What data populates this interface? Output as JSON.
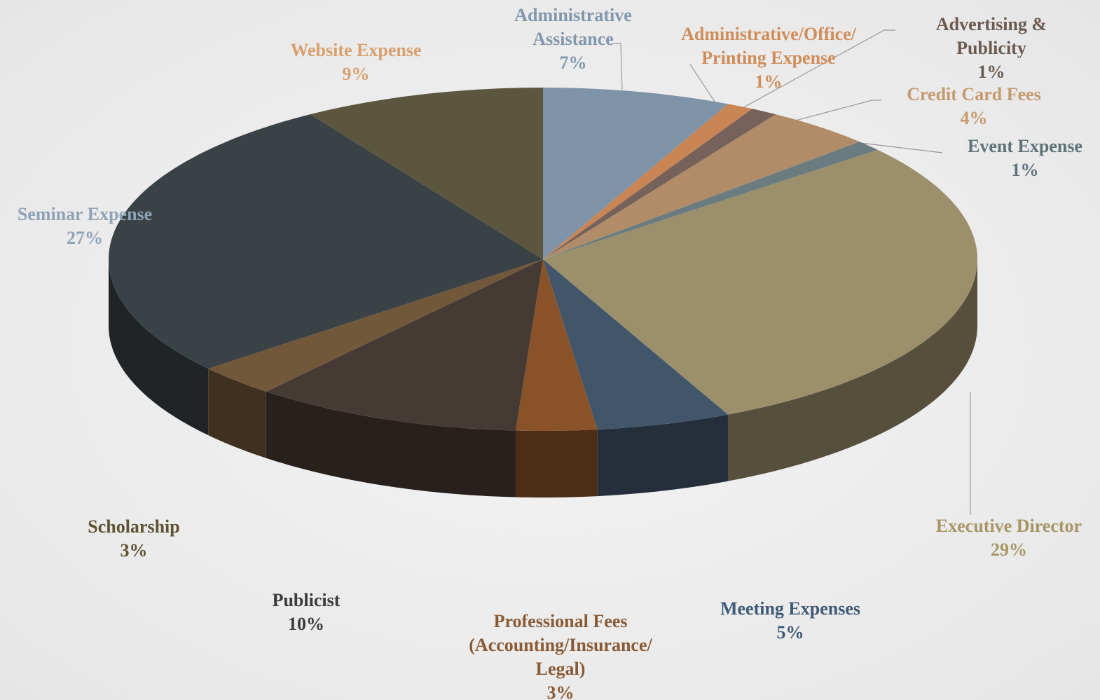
{
  "chart_data": {
    "type": "pie3d",
    "categories": [
      "Administrative Assistance",
      "Administrative/Office/ Printing Expense",
      "Advertising & Publicity",
      "Credit Card Fees",
      "Event Expense",
      "Executive Director",
      "Meeting Expenses",
      "Professional Fees (Accounting/Insurance/ Legal)",
      "Publicist",
      "Scholarship",
      "Seminar Expense",
      "Website Expense"
    ],
    "values": [
      7,
      1,
      1,
      4,
      1,
      29,
      5,
      3,
      10,
      3,
      27,
      9
    ],
    "value_labels": [
      "7%",
      "1%",
      "1%",
      "4%",
      "1%",
      "29%",
      "5%",
      "3%",
      "10%",
      "3%",
      "27%",
      "9%"
    ],
    "colors": [
      "#7f93a8",
      "#c98654",
      "#76625a",
      "#b08c68",
      "#6a7c80",
      "#9b8f6c",
      "#41566b",
      "#8a5228",
      "#463a35",
      "#72583a",
      "#3a4246",
      "#5d563f"
    ],
    "label_colors": [
      "#8197ad",
      "#d08d5a",
      "#6b5a50",
      "#c49a6e",
      "#5e7378",
      "#a89566",
      "#3f5a78",
      "#8a5a34",
      "#3b3a3a",
      "#5f5232",
      "#8ea3b8",
      "#d9a06f"
    ]
  }
}
